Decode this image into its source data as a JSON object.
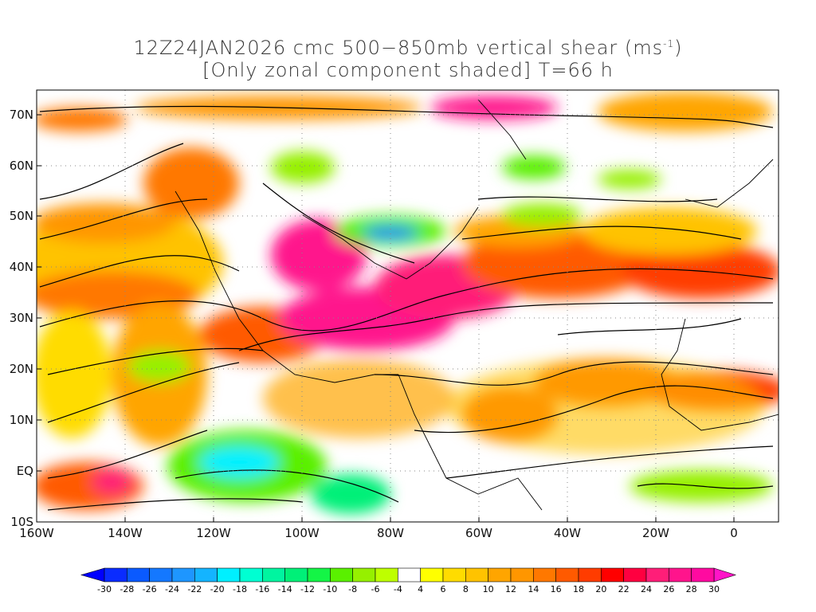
{
  "title": {
    "line1": "12Z24JAN2026 cmc 500−850mb vertical shear (ms",
    "line1_sup": "-1",
    "line1_end": ")",
    "line2": "[Only zonal component shaded] T=66 h"
  },
  "lat_labels": [
    "70N",
    "60N",
    "50N",
    "40N",
    "30N",
    "20N",
    "10N",
    "EQ",
    "10S"
  ],
  "lon_labels": [
    "160W",
    "140W",
    "120W",
    "100W",
    "80W",
    "60W",
    "40W",
    "20W",
    "0"
  ],
  "colorbar": {
    "labels": [
      "-30",
      "-28",
      "-26",
      "-24",
      "-22",
      "-20",
      "-18",
      "-16",
      "-14",
      "-12",
      "-10",
      "-8",
      "-6",
      "-4",
      "4",
      "6",
      "8",
      "10",
      "12",
      "14",
      "16",
      "18",
      "20",
      "22",
      "24",
      "26",
      "28",
      "30"
    ],
    "colors": [
      "#0a2cff",
      "#0a5aff",
      "#1478ff",
      "#1e96ff",
      "#14b4ff",
      "#00f0ff",
      "#00ffd2",
      "#00f5a0",
      "#00f078",
      "#14f546",
      "#5af000",
      "#96f000",
      "#beff00",
      "#ffffff",
      "#ffff00",
      "#ffdc00",
      "#ffc300",
      "#ffa500",
      "#ff9600",
      "#ff7800",
      "#ff5a00",
      "#ff3c00",
      "#ff0000",
      "#ff0040",
      "#ff1e78",
      "#ff148c",
      "#ff0aa0"
    ],
    "low_arrow_color": "#0000ff",
    "high_arrow_color": "#ff14c8"
  }
}
